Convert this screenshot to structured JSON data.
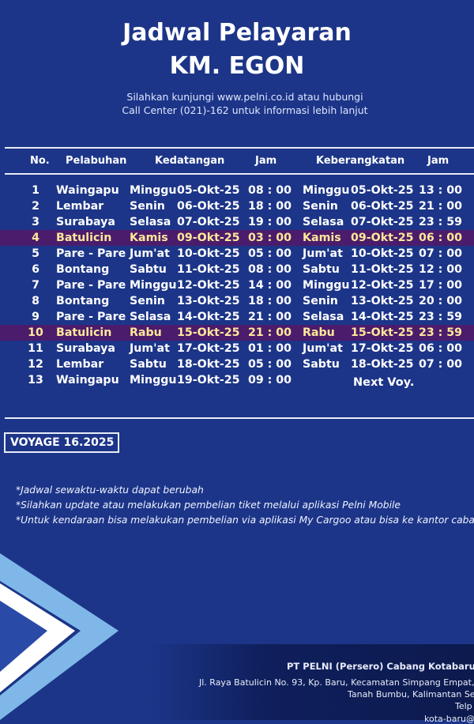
{
  "header": {
    "title": "Jadwal Pelayaran",
    "ship": "KM. EGON",
    "info_line1": "Silahkan  kunjungi  www.pelni.co.id  atau  hubungi",
    "info_line2": "Call Center (021)-162 untuk informasi lebih lanjut"
  },
  "table": {
    "columns": {
      "no": "No.",
      "port": "Pelabuhan",
      "arrival": "Kedatangan",
      "arrival_time": "Jam",
      "departure": "Keberangkatan",
      "departure_time": "Jam"
    },
    "rows": [
      {
        "no": "1",
        "port": "Waingapu",
        "arr_day": "Minggu",
        "arr_date": "05-Okt-25",
        "arr_time": "08 : 00",
        "dep_day": "Minggu",
        "dep_date": "05-Okt-25",
        "dep_time": "13 : 00",
        "highlight": false
      },
      {
        "no": "2",
        "port": "Lembar",
        "arr_day": "Senin",
        "arr_date": "06-Okt-25",
        "arr_time": "18 : 00",
        "dep_day": "Senin",
        "dep_date": "06-Okt-25",
        "dep_time": "21 : 00",
        "highlight": false
      },
      {
        "no": "3",
        "port": "Surabaya",
        "arr_day": "Selasa",
        "arr_date": "07-Okt-25",
        "arr_time": "19 : 00",
        "dep_day": "Selasa",
        "dep_date": "07-Okt-25",
        "dep_time": "23 : 59",
        "highlight": false
      },
      {
        "no": "4",
        "port": "Batulicin",
        "arr_day": "Kamis",
        "arr_date": "09-Okt-25",
        "arr_time": "03 : 00",
        "dep_day": "Kamis",
        "dep_date": "09-Okt-25",
        "dep_time": "06 : 00",
        "highlight": true
      },
      {
        "no": "5",
        "port": "Pare - Pare",
        "arr_day": "Jum'at",
        "arr_date": "10-Okt-25",
        "arr_time": "05 : 00",
        "dep_day": "Jum'at",
        "dep_date": "10-Okt-25",
        "dep_time": "07 : 00",
        "highlight": false
      },
      {
        "no": "6",
        "port": "Bontang",
        "arr_day": "Sabtu",
        "arr_date": "11-Okt-25",
        "arr_time": "08 : 00",
        "dep_day": "Sabtu",
        "dep_date": "11-Okt-25",
        "dep_time": "12 : 00",
        "highlight": false
      },
      {
        "no": "7",
        "port": "Pare - Pare",
        "arr_day": "Minggu",
        "arr_date": "12-Okt-25",
        "arr_time": "14 : 00",
        "dep_day": "Minggu",
        "dep_date": "12-Okt-25",
        "dep_time": "17 : 00",
        "highlight": false
      },
      {
        "no": "8",
        "port": "Bontang",
        "arr_day": "Senin",
        "arr_date": "13-Okt-25",
        "arr_time": "18 : 00",
        "dep_day": "Senin",
        "dep_date": "13-Okt-25",
        "dep_time": "20 : 00",
        "highlight": false
      },
      {
        "no": "9",
        "port": "Pare - Pare",
        "arr_day": "Selasa",
        "arr_date": "14-Okt-25",
        "arr_time": "21 : 00",
        "dep_day": "Selasa",
        "dep_date": "14-Okt-25",
        "dep_time": "23 : 59",
        "highlight": false
      },
      {
        "no": "10",
        "port": "Batulicin",
        "arr_day": "Rabu",
        "arr_date": "15-Okt-25",
        "arr_time": "21 : 00",
        "dep_day": "Rabu",
        "dep_date": "15-Okt-25",
        "dep_time": "23 : 59",
        "highlight": true
      },
      {
        "no": "11",
        "port": "Surabaya",
        "arr_day": "Jum'at",
        "arr_date": "17-Okt-25",
        "arr_time": "01 : 00",
        "dep_day": "Jum'at",
        "dep_date": "17-Okt-25",
        "dep_time": "06 : 00",
        "highlight": false
      },
      {
        "no": "12",
        "port": "Lembar",
        "arr_day": "Sabtu",
        "arr_date": "18-Okt-25",
        "arr_time": "05 : 00",
        "dep_day": "Sabtu",
        "dep_date": "18-Okt-25",
        "dep_time": "07 : 00",
        "highlight": false
      },
      {
        "no": "13",
        "port": "Waingapu",
        "arr_day": "Minggu",
        "arr_date": "19-Okt-25",
        "arr_time": "09 : 00",
        "dep_day": "",
        "dep_date": "",
        "dep_time": "",
        "highlight": false
      }
    ],
    "next_voyage": "Next Voy."
  },
  "voyage": "VOYAGE 16.2025",
  "notes": [
    "*Jadwal sewaktu-waktu dapat berubah",
    "*Silahkan update atau melakukan pembelian tiket melalui aplikasi Pelni Mobile",
    "*Untuk kendaraan bisa melakukan pembelian via aplikasi My Cargoo atau bisa ke kantor cabang"
  ],
  "footer": {
    "company": "PT PELNI (Persero) Cabang Kotabaru /",
    "address1": "Jl. Raya Batulicin No. 93, Kp. Baru, Kecamatan Simpang Empat,",
    "address2": "Tanah Bumbu, Kalimantan Se",
    "phone": "Telp",
    "email": "kota-baru@"
  },
  "colors": {
    "background": "#1c3588",
    "highlight_row": "#4b1c6c",
    "highlight_text": "#ffe89a",
    "chevron": "#7fb8e8"
  }
}
